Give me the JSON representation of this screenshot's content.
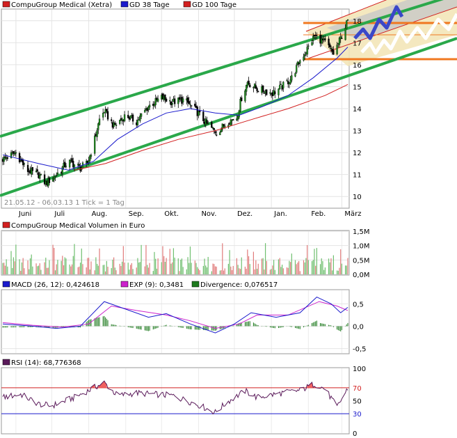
{
  "chart_data": [
    {
      "type": "candlestick",
      "legend": [
        {
          "label": "CompuGroup Medical (Xetra)",
          "color": "#d22020"
        },
        {
          "label": "GD 38 Tage",
          "color": "#1a1acc"
        },
        {
          "label": "GD 100 Tage",
          "color": "#d22020"
        }
      ],
      "period_label": "21.05.12 - 06.03.13   1 Tick = 1 Tag",
      "x_tick_labels": [
        "Juni",
        "Juli",
        "Aug.",
        "Sep.",
        "Okt.",
        "Nov.",
        "Dez.",
        "Jan.",
        "Feb.",
        "März"
      ],
      "y_tick_labels": [
        "10",
        "11",
        "12",
        "13",
        "14",
        "15",
        "16",
        "17",
        "18"
      ],
      "ylim": [
        9.5,
        18.5
      ],
      "colors": {
        "up": "#1e8a1e",
        "down": "#000000",
        "channel": "#2aa84a",
        "horizontal": "#f07820",
        "projection": "#3a48c8",
        "ma38": "#1a1acc",
        "ma100": "#d22020"
      },
      "price_points": [
        [
          "2012-05-21",
          11.7
        ],
        [
          "2012-06-01",
          12.0
        ],
        [
          "2012-06-10",
          11.2
        ],
        [
          "2012-06-20",
          11.0
        ],
        [
          "2012-06-26",
          10.6
        ],
        [
          "2012-07-05",
          11.0
        ],
        [
          "2012-07-15",
          11.6
        ],
        [
          "2012-07-25",
          11.3
        ],
        [
          "2012-07-31",
          11.5
        ],
        [
          "2012-08-05",
          12.4
        ],
        [
          "2012-08-10",
          13.5
        ],
        [
          "2012-08-14",
          13.9
        ],
        [
          "2012-08-22",
          13.2
        ],
        [
          "2012-09-01",
          13.7
        ],
        [
          "2012-09-10",
          13.4
        ],
        [
          "2012-09-20",
          14.1
        ],
        [
          "2012-10-01",
          14.5
        ],
        [
          "2012-10-10",
          14.3
        ],
        [
          "2012-10-20",
          14.4
        ],
        [
          "2012-10-30",
          13.9
        ],
        [
          "2012-11-08",
          13.3
        ],
        [
          "2012-11-16",
          12.9
        ],
        [
          "2012-11-25",
          13.4
        ],
        [
          "2012-12-03",
          13.6
        ],
        [
          "2012-12-07",
          14.5
        ],
        [
          "2012-12-12",
          15.2
        ],
        [
          "2012-12-20",
          14.9
        ],
        [
          "2013-01-02",
          14.7
        ],
        [
          "2013-01-10",
          15.0
        ],
        [
          "2013-01-18",
          15.4
        ],
        [
          "2013-01-25",
          16.2
        ],
        [
          "2013-02-01",
          16.8
        ],
        [
          "2013-02-06",
          17.3
        ],
        [
          "2013-02-15",
          17.0
        ],
        [
          "2013-02-22",
          16.5
        ],
        [
          "2013-02-28",
          17.2
        ],
        [
          "2013-03-06",
          18.0
        ]
      ],
      "ma38_points": [
        [
          "2012-05-21",
          11.9
        ],
        [
          "2012-06-20",
          11.5
        ],
        [
          "2012-07-15",
          11.2
        ],
        [
          "2012-08-05",
          11.6
        ],
        [
          "2012-08-25",
          12.6
        ],
        [
          "2012-09-15",
          13.3
        ],
        [
          "2012-10-05",
          13.8
        ],
        [
          "2012-10-25",
          14.0
        ],
        [
          "2012-11-15",
          13.8
        ],
        [
          "2012-12-05",
          13.7
        ],
        [
          "2012-12-25",
          14.1
        ],
        [
          "2013-01-15",
          14.6
        ],
        [
          "2013-02-05",
          15.4
        ],
        [
          "2013-02-25",
          16.3
        ],
        [
          "2013-03-06",
          16.8
        ]
      ],
      "ma100_points": [
        [
          "2012-07-20",
          11.2
        ],
        [
          "2012-08-15",
          11.5
        ],
        [
          "2012-09-15",
          12.1
        ],
        [
          "2012-10-15",
          12.6
        ],
        [
          "2012-11-15",
          13.0
        ],
        [
          "2012-12-15",
          13.5
        ],
        [
          "2013-01-15",
          14.0
        ],
        [
          "2013-02-15",
          14.6
        ],
        [
          "2013-03-06",
          15.1
        ]
      ]
    },
    {
      "type": "bar",
      "legend": [
        {
          "label": "CompuGroup Medical Volumen in Euro",
          "color": "#d22020"
        }
      ],
      "y_tick_labels": [
        "0,0M",
        "0,5M",
        "1,0M",
        "1,5M"
      ],
      "ylim": [
        0,
        1.5
      ]
    },
    {
      "type": "line",
      "legend": [
        {
          "label": "MACD (26, 12): 0,424618",
          "color": "#1a1acc"
        },
        {
          "label": "EXP (9): 0,3481",
          "color": "#cc22cc"
        },
        {
          "label": "Divergence: 0,076517",
          "color": "#1e7a1e"
        }
      ],
      "y_tick_labels": [
        "-0,5",
        "0,0",
        "0,5"
      ],
      "ylim": [
        -0.6,
        0.8
      ],
      "macd_points": [
        [
          "2012-05-21",
          0.05
        ],
        [
          "2012-06-15",
          0.0
        ],
        [
          "2012-07-05",
          -0.05
        ],
        [
          "2012-07-25",
          0.0
        ],
        [
          "2012-08-14",
          0.55
        ],
        [
          "2012-09-01",
          0.38
        ],
        [
          "2012-09-20",
          0.2
        ],
        [
          "2012-10-05",
          0.28
        ],
        [
          "2012-10-25",
          0.05
        ],
        [
          "2012-11-15",
          -0.15
        ],
        [
          "2012-12-01",
          0.05
        ],
        [
          "2012-12-15",
          0.3
        ],
        [
          "2013-01-05",
          0.2
        ],
        [
          "2013-01-25",
          0.3
        ],
        [
          "2013-02-08",
          0.65
        ],
        [
          "2013-02-20",
          0.5
        ],
        [
          "2013-02-28",
          0.3
        ],
        [
          "2013-03-06",
          0.42
        ]
      ],
      "exp_points": [
        [
          "2012-05-21",
          0.08
        ],
        [
          "2012-06-15",
          0.02
        ],
        [
          "2012-07-10",
          -0.02
        ],
        [
          "2012-08-01",
          0.05
        ],
        [
          "2012-08-20",
          0.45
        ],
        [
          "2012-09-10",
          0.35
        ],
        [
          "2012-10-05",
          0.25
        ],
        [
          "2012-10-25",
          0.12
        ],
        [
          "2012-11-15",
          -0.05
        ],
        [
          "2012-12-05",
          0.05
        ],
        [
          "2012-12-20",
          0.25
        ],
        [
          "2013-01-15",
          0.25
        ],
        [
          "2013-02-10",
          0.55
        ],
        [
          "2013-02-25",
          0.45
        ],
        [
          "2013-03-06",
          0.35
        ]
      ]
    },
    {
      "type": "line",
      "legend": [
        {
          "label": "RSI (14): 68,776368",
          "color": "#5a1a5a"
        }
      ],
      "y_tick_labels": [
        "0",
        "30",
        "50",
        "70",
        "100"
      ],
      "ylim": [
        0,
        100
      ],
      "reference_lines": [
        {
          "value": 70,
          "color": "#d22020"
        },
        {
          "value": 30,
          "color": "#1a1acc"
        }
      ],
      "rsi_points": [
        [
          "2012-05-21",
          55
        ],
        [
          "2012-06-05",
          60
        ],
        [
          "2012-06-20",
          45
        ],
        [
          "2012-07-01",
          42
        ],
        [
          "2012-07-20",
          55
        ],
        [
          "2012-08-14",
          78
        ],
        [
          "2012-08-25",
          58
        ],
        [
          "2012-09-10",
          62
        ],
        [
          "2012-09-25",
          60
        ],
        [
          "2012-10-10",
          58
        ],
        [
          "2012-10-30",
          45
        ],
        [
          "2012-11-15",
          32
        ],
        [
          "2012-11-25",
          48
        ],
        [
          "2012-12-10",
          65
        ],
        [
          "2012-12-20",
          55
        ],
        [
          "2013-01-10",
          62
        ],
        [
          "2013-01-25",
          66
        ],
        [
          "2013-02-06",
          76
        ],
        [
          "2013-02-15",
          68
        ],
        [
          "2013-02-25",
          40
        ],
        [
          "2013-03-06",
          69
        ]
      ]
    }
  ]
}
